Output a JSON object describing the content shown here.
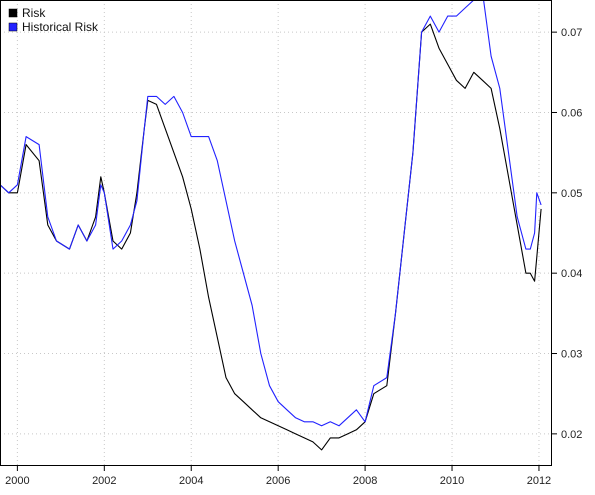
{
  "chart_data": {
    "type": "line",
    "title": "",
    "xlabel": "",
    "ylabel": "",
    "xlim": [
      1999.6,
      2012.3
    ],
    "ylim": [
      0.016,
      0.074
    ],
    "x_ticks": [
      2000,
      2002,
      2004,
      2006,
      2008,
      2010,
      2012
    ],
    "x_tick_labels": [
      "2000",
      "2002",
      "2004",
      "2006",
      "2008",
      "2010",
      "2012"
    ],
    "y_ticks": [
      0.02,
      0.03,
      0.04,
      0.05,
      0.06,
      0.07
    ],
    "y_tick_labels": [
      "0.02",
      "0.03",
      "0.04",
      "0.05",
      "0.06",
      "0.07"
    ],
    "y_axis_side": "right",
    "grid": true,
    "legend_position": "top-left",
    "series": [
      {
        "name": "Risk",
        "color": "#000000",
        "x": [
          1999.6,
          1999.8,
          2000.0,
          2000.2,
          2000.5,
          2000.7,
          2000.9,
          2001.2,
          2001.4,
          2001.6,
          2001.8,
          2001.92,
          2002.0,
          2002.2,
          2002.4,
          2002.6,
          2002.75,
          2002.92,
          2003.0,
          2003.2,
          2003.4,
          2003.6,
          2003.8,
          2004.0,
          2004.2,
          2004.4,
          2004.6,
          2004.8,
          2005.0,
          2005.2,
          2005.4,
          2005.6,
          2005.8,
          2006.0,
          2006.2,
          2006.4,
          2006.6,
          2006.8,
          2007.0,
          2007.2,
          2007.4,
          2007.6,
          2007.8,
          2008.0,
          2008.2,
          2008.5,
          2008.7,
          2008.9,
          2009.1,
          2009.3,
          2009.5,
          2009.7,
          2009.9,
          2010.1,
          2010.3,
          2010.5,
          2010.7,
          2010.9,
          2011.1,
          2011.3,
          2011.5,
          2011.7,
          2011.8,
          2011.9,
          2011.95,
          2012.05
        ],
        "values": [
          0.051,
          0.05,
          0.05,
          0.056,
          0.054,
          0.046,
          0.044,
          0.043,
          0.046,
          0.044,
          0.047,
          0.052,
          0.05,
          0.044,
          0.043,
          0.045,
          0.05,
          0.058,
          0.0615,
          0.061,
          0.058,
          0.055,
          0.052,
          0.048,
          0.043,
          0.037,
          0.032,
          0.027,
          0.025,
          0.024,
          0.023,
          0.022,
          0.0215,
          0.021,
          0.0205,
          0.02,
          0.0195,
          0.019,
          0.018,
          0.0195,
          0.0195,
          0.02,
          0.0205,
          0.0215,
          0.025,
          0.026,
          0.035,
          0.045,
          0.055,
          0.07,
          0.071,
          0.068,
          0.066,
          0.064,
          0.063,
          0.065,
          0.064,
          0.063,
          0.058,
          0.052,
          0.046,
          0.04,
          0.04,
          0.039,
          0.042,
          0.048
        ]
      },
      {
        "name": "Historical Risk",
        "color": "#2222ff",
        "x": [
          1999.6,
          1999.8,
          2000.0,
          2000.2,
          2000.5,
          2000.7,
          2000.9,
          2001.2,
          2001.4,
          2001.6,
          2001.8,
          2001.92,
          2002.0,
          2002.2,
          2002.4,
          2002.6,
          2002.75,
          2002.92,
          2003.0,
          2003.2,
          2003.4,
          2003.6,
          2003.8,
          2004.0,
          2004.2,
          2004.4,
          2004.6,
          2004.8,
          2005.0,
          2005.2,
          2005.4,
          2005.6,
          2005.8,
          2006.0,
          2006.2,
          2006.4,
          2006.6,
          2006.8,
          2007.0,
          2007.2,
          2007.4,
          2007.6,
          2007.8,
          2008.0,
          2008.2,
          2008.5,
          2008.7,
          2008.9,
          2009.1,
          2009.3,
          2009.5,
          2009.7,
          2009.9,
          2010.1,
          2010.3,
          2010.5,
          2010.7,
          2010.9,
          2011.1,
          2011.3,
          2011.5,
          2011.7,
          2011.8,
          2011.9,
          2011.95,
          2012.05
        ],
        "values": [
          0.051,
          0.05,
          0.051,
          0.057,
          0.056,
          0.047,
          0.044,
          0.043,
          0.046,
          0.044,
          0.046,
          0.051,
          0.05,
          0.043,
          0.044,
          0.046,
          0.049,
          0.058,
          0.062,
          0.062,
          0.061,
          0.062,
          0.06,
          0.057,
          0.057,
          0.057,
          0.054,
          0.049,
          0.044,
          0.04,
          0.036,
          0.03,
          0.026,
          0.024,
          0.023,
          0.022,
          0.0215,
          0.0215,
          0.021,
          0.0215,
          0.021,
          0.022,
          0.023,
          0.0215,
          0.026,
          0.027,
          0.035,
          0.045,
          0.055,
          0.07,
          0.072,
          0.07,
          0.072,
          0.072,
          0.073,
          0.074,
          0.075,
          0.067,
          0.063,
          0.055,
          0.047,
          0.043,
          0.043,
          0.045,
          0.05,
          0.0485
        ]
      }
    ]
  }
}
